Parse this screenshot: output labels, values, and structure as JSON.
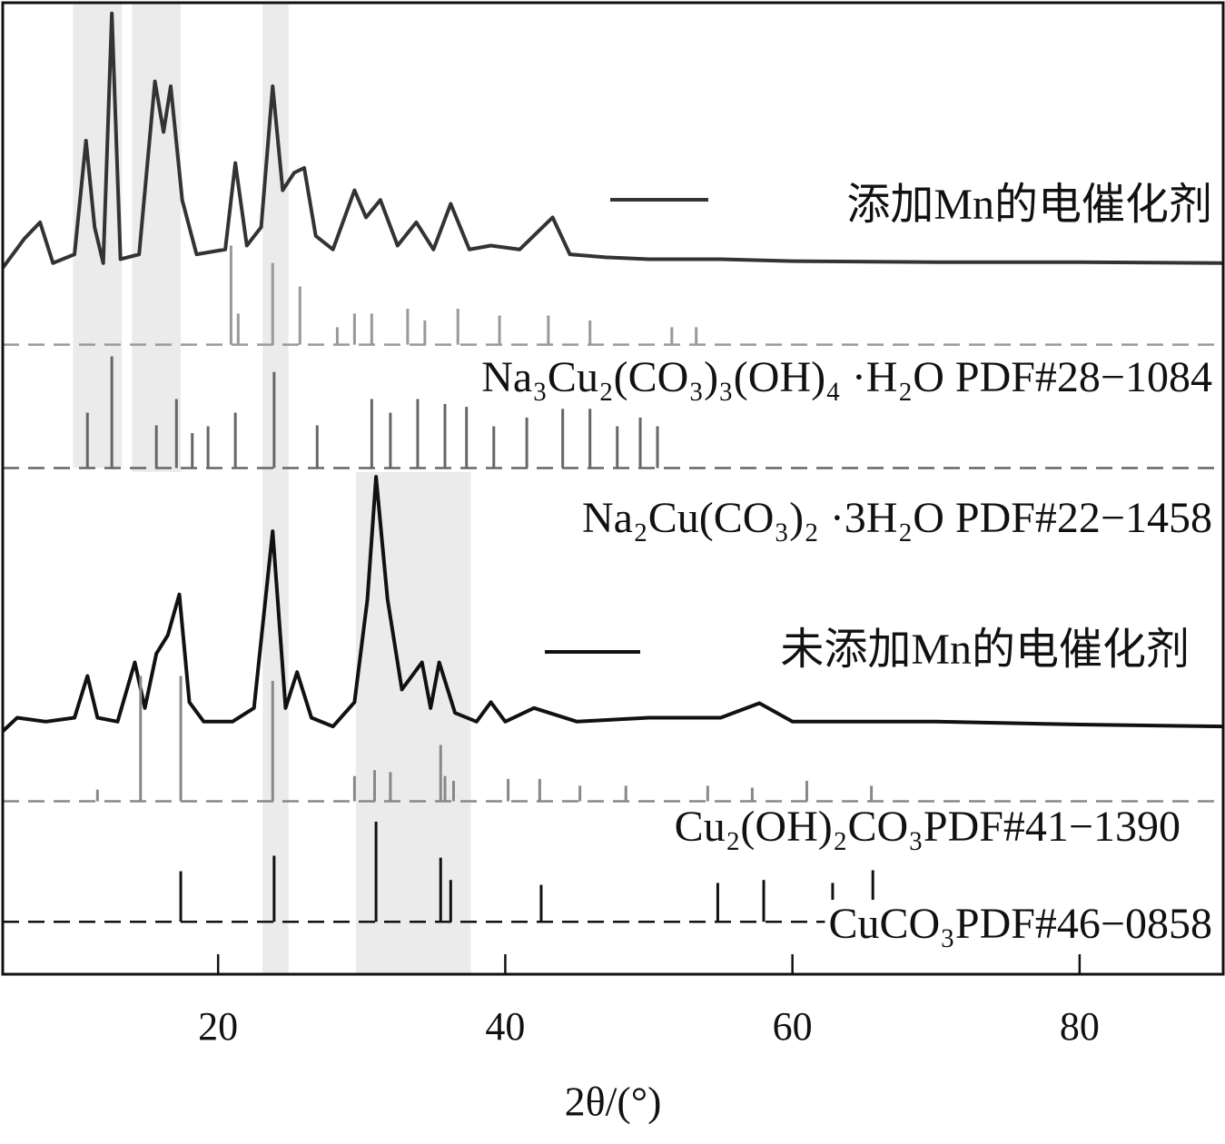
{
  "chart_data": {
    "type": "line",
    "x_label": "2θ/(°)",
    "xlim": [
      5,
      90
    ],
    "ylim": [
      0,
      100
    ],
    "xticks": [
      20,
      40,
      60,
      80
    ],
    "highlight_bands": [
      {
        "x": [
          9.9,
          13.3
        ],
        "y": [
          52.1,
          100
        ]
      },
      {
        "x": [
          14.0,
          17.4
        ],
        "y": [
          51.7,
          100
        ]
      },
      {
        "x": [
          23.1,
          24.9
        ],
        "y": [
          0,
          100
        ]
      },
      {
        "x": [
          29.6,
          37.6
        ],
        "y": [
          0,
          51.7
        ]
      }
    ],
    "series": [
      {
        "name": "添加Mn的电催化剂",
        "type": "line",
        "color": "#333333",
        "x": [
          5,
          6.5,
          7.6,
          8.5,
          10,
          10.8,
          11.4,
          12,
          12.6,
          13.2,
          14.5,
          15.6,
          16.2,
          16.7,
          17.5,
          18.5,
          20.5,
          21.2,
          22,
          23,
          23.8,
          24.5,
          25.3,
          26,
          26.8,
          28,
          29.5,
          30.3,
          31.3,
          32.5,
          33.8,
          35,
          36.2,
          37.5,
          39,
          41,
          43.3,
          44.5,
          47,
          50,
          55,
          60,
          70,
          80,
          90
        ],
        "values": [
          72.7,
          75.7,
          77.4,
          73.2,
          74.1,
          85.8,
          76.9,
          73.2,
          98.9,
          73.6,
          74.1,
          91.9,
          86.7,
          91.4,
          79.7,
          74.1,
          74.6,
          83.5,
          75.0,
          76.9,
          91.4,
          80.7,
          82.5,
          83.0,
          76.0,
          74.6,
          80.7,
          77.9,
          79.7,
          75.0,
          77.4,
          74.6,
          79.3,
          74.6,
          75.0,
          74.6,
          77.9,
          74.1,
          73.8,
          73.6,
          73.6,
          73.4,
          73.3,
          73.3,
          73.2
        ]
      },
      {
        "name": "Na₃Cu₂(CO₃)₃(OH)₄ ·H₂O PDF#28−1084",
        "type": "stick",
        "color": "#999999",
        "baseline": 64.8,
        "x": [
          20.9,
          21.4,
          23.8,
          25.7,
          28.3,
          29.5,
          30.7,
          33.2,
          34.4,
          36.7,
          39.6,
          43.0,
          45.9,
          51.6,
          53.3
        ],
        "values": [
          75.0,
          68.0,
          73.2,
          70.8,
          66.6,
          68.0,
          68.0,
          68.5,
          67.3,
          68.5,
          67.8,
          67.8,
          67.3,
          66.6,
          66.6
        ]
      },
      {
        "name": "Na₂Cu(CO₃)₂ ·3H₂O PDF#22−1458",
        "type": "stick",
        "color": "#666666",
        "baseline": 52.1,
        "x": [
          10.9,
          12.6,
          15.7,
          17.1,
          18.2,
          19.3,
          21.2,
          23.9,
          26.9,
          30.7,
          32.0,
          33.9,
          35.8,
          37.3,
          39.2,
          41.5,
          44.0,
          45.9,
          47.8,
          49.4,
          50.6
        ],
        "values": [
          57.8,
          63.6,
          56.5,
          59.2,
          55.7,
          56.4,
          57.8,
          62.0,
          56.5,
          59.2,
          57.8,
          59.2,
          58.7,
          58.4,
          56.4,
          57.3,
          58.2,
          58.2,
          56.4,
          57.3,
          56.4
        ]
      },
      {
        "name": "未添加Mn的电催化剂",
        "type": "line",
        "color": "#111111",
        "x": [
          5,
          6,
          8,
          10,
          10.9,
          11.6,
          13,
          14.2,
          14.9,
          15.7,
          16.5,
          17.3,
          18,
          19,
          21,
          22.5,
          23.8,
          24.7,
          25.5,
          26.5,
          28,
          29.5,
          30.4,
          31,
          31.8,
          32.8,
          34.2,
          34.8,
          35.4,
          36.5,
          38,
          39,
          40,
          42,
          45,
          50,
          55,
          57.7,
          60,
          70,
          80,
          90
        ],
        "values": [
          25.0,
          26.4,
          26.0,
          26.4,
          30.7,
          26.4,
          26.0,
          32.1,
          27.4,
          33.0,
          34.9,
          39.1,
          28.0,
          26.0,
          26.0,
          27.4,
          45.6,
          27.4,
          31.1,
          26.4,
          25.5,
          28.0,
          38.6,
          51.2,
          38.6,
          29.3,
          32.1,
          27.4,
          32.1,
          26.9,
          26.0,
          28.0,
          26.0,
          27.4,
          26.0,
          26.4,
          26.4,
          27.9,
          26.0,
          26.0,
          25.7,
          25.5
        ]
      },
      {
        "name": "Cu₂(OH)₂CO₃PDF#41−1390",
        "type": "stick",
        "color": "#888888",
        "baseline": 17.8,
        "x": [
          11.6,
          14.6,
          17.4,
          23.8,
          29.5,
          30.9,
          32.0,
          35.5,
          35.8,
          36.4,
          40.2,
          42.4,
          45.2,
          48.4,
          54.1,
          57.2,
          61.0,
          65.5
        ],
        "values": [
          19.0,
          30.7,
          30.7,
          30.2,
          20.4,
          21.0,
          20.8,
          23.6,
          20.4,
          19.9,
          20.1,
          20.1,
          19.4,
          19.4,
          19.4,
          19.2,
          19.9,
          19.4
        ]
      },
      {
        "name": "CuCO₃PDF#46−0858",
        "type": "stick",
        "color": "#111111",
        "baseline": 5.4,
        "x": [
          17.4,
          23.9,
          31.0,
          35.5,
          36.2,
          42.5,
          54.8,
          58.0,
          62.8,
          65.6
        ],
        "values": [
          10.6,
          12.2,
          15.7,
          12.0,
          9.7,
          9.2,
          9.4,
          9.7,
          9.4,
          10.7
        ]
      }
    ]
  }
}
